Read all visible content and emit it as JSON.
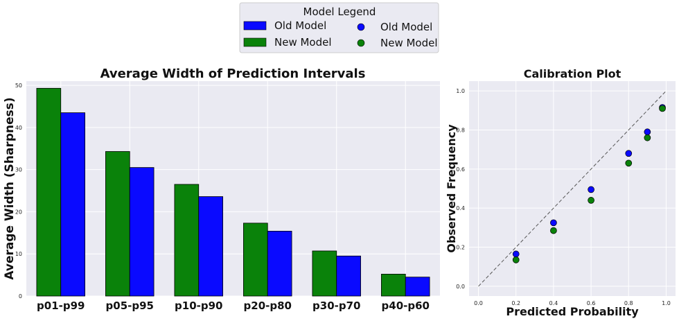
{
  "legend": {
    "title": "Model Legend",
    "entries": [
      "Old Model",
      "New Model",
      "Old Model",
      "New Model"
    ]
  },
  "colors": {
    "old": "#0a0aff",
    "new": "#0a820a",
    "panel": "#eaeaf2",
    "grid": "#ffffff"
  },
  "chart_data": [
    {
      "type": "bar",
      "title": "Average Width of Prediction Intervals",
      "xlabel": "",
      "ylabel": "Average Width (Sharpness)",
      "categories": [
        "p01-p99",
        "p05-p95",
        "p10-p90",
        "p20-p80",
        "p30-p70",
        "p40-p60"
      ],
      "series": [
        {
          "name": "New Model",
          "values": [
            49.3,
            34.3,
            26.5,
            17.3,
            10.7,
            5.2
          ]
        },
        {
          "name": "Old Model",
          "values": [
            43.5,
            30.5,
            23.6,
            15.4,
            9.5,
            4.5
          ]
        }
      ],
      "ylim": [
        0,
        51
      ],
      "yticks": [
        0,
        10,
        20,
        30,
        40,
        50
      ],
      "grid": true
    },
    {
      "type": "scatter",
      "title": "Calibration Plot",
      "xlabel": "Predicted Probability",
      "ylabel": "Observed Frequency",
      "xlim": [
        -0.05,
        1.05
      ],
      "ylim": [
        -0.05,
        1.05
      ],
      "xticks": [
        "0.0",
        "0.2",
        "0.4",
        "0.6",
        "0.8",
        "1.0"
      ],
      "yticks": [
        "0.0",
        "0.2",
        "0.4",
        "0.6",
        "0.8",
        "1.0"
      ],
      "reference_line": {
        "style": "dashed",
        "from": [
          0,
          0
        ],
        "to": [
          1,
          1
        ]
      },
      "series": [
        {
          "name": "Old Model",
          "x": [
            0.2,
            0.4,
            0.6,
            0.8,
            0.9,
            0.98
          ],
          "y": [
            0.165,
            0.325,
            0.495,
            0.68,
            0.79,
            0.915
          ]
        },
        {
          "name": "New Model",
          "x": [
            0.2,
            0.4,
            0.6,
            0.8,
            0.9,
            0.98
          ],
          "y": [
            0.135,
            0.285,
            0.44,
            0.63,
            0.76,
            0.91
          ]
        }
      ],
      "grid": true
    }
  ]
}
